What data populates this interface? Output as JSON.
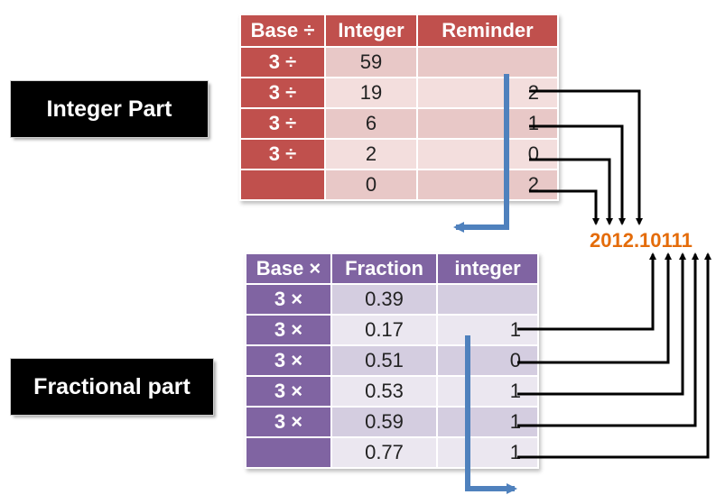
{
  "labels": {
    "integer_part": "Integer Part",
    "fractional_part": "Fractional part"
  },
  "integer_table": {
    "headers": [
      "Base ÷",
      "Integer",
      "Reminder"
    ],
    "rows": [
      {
        "divisor": "3 ÷",
        "integer": "59",
        "remainder": ""
      },
      {
        "divisor": "3 ÷",
        "integer": "19",
        "remainder": "2"
      },
      {
        "divisor": "3 ÷",
        "integer": "6",
        "remainder": "1"
      },
      {
        "divisor": "3 ÷",
        "integer": "2",
        "remainder": "0"
      },
      {
        "divisor": "",
        "integer": "0",
        "remainder": "2"
      }
    ]
  },
  "fraction_table": {
    "headers": [
      "Base ×",
      "Fraction",
      "integer"
    ],
    "rows": [
      {
        "multiplier": "3 ×",
        "fraction": "0.39",
        "integer": ""
      },
      {
        "multiplier": "3 ×",
        "fraction": "0.17",
        "integer": "1"
      },
      {
        "multiplier": "3 ×",
        "fraction": "0.51",
        "integer": "0"
      },
      {
        "multiplier": "3 ×",
        "fraction": "0.53",
        "integer": "1"
      },
      {
        "multiplier": "3 ×",
        "fraction": "0.59",
        "integer": "1"
      },
      {
        "multiplier": "",
        "fraction": "0.77",
        "integer": "1"
      }
    ]
  },
  "result": "2012.10111",
  "colors": {
    "integer_header": "#c0504d",
    "fraction_header": "#8064a2",
    "result": "#e46c0a",
    "flow_arrow": "#4f81bd"
  }
}
